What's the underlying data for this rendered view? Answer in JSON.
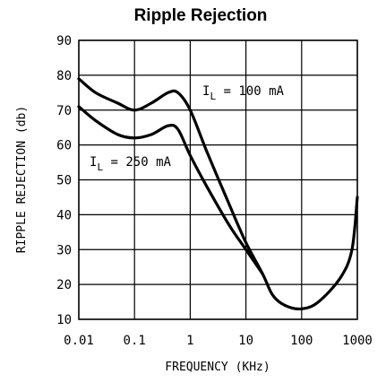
{
  "chart_data": {
    "type": "line",
    "title": "Ripple Rejection",
    "xlabel": "FREQUENCY (KHz)",
    "ylabel": "RIPPLE REJECTION (db)",
    "x_scale": "log",
    "xlim": [
      0.01,
      1000
    ],
    "ylim": [
      10,
      90
    ],
    "x_ticks": [
      0.01,
      0.1,
      1,
      10,
      100,
      1000
    ],
    "x_tick_labels": [
      "0.01",
      "0.1",
      "1",
      "10",
      "100",
      "1000"
    ],
    "y_ticks": [
      10,
      20,
      30,
      40,
      50,
      60,
      70,
      80,
      90
    ],
    "y_tick_labels": [
      "10",
      "20",
      "30",
      "40",
      "50",
      "60",
      "70",
      "80",
      "90"
    ],
    "grid": true,
    "series": [
      {
        "name": "IL = 100 mA",
        "label_main": "I",
        "label_sub": "L",
        "label_rest": " = 100 mA",
        "x": [
          0.01,
          0.02,
          0.05,
          0.1,
          0.2,
          0.4,
          0.6,
          1,
          2,
          5,
          10,
          20,
          30,
          50,
          100,
          200,
          500,
          800,
          1000
        ],
        "y": [
          79,
          75,
          72,
          70,
          72,
          75,
          75,
          70,
          58,
          43,
          32,
          23,
          17,
          14,
          13,
          15,
          22,
          30,
          45
        ]
      },
      {
        "name": "IL = 250 mA",
        "label_main": "I",
        "label_sub": "L",
        "label_rest": " = 250 mA",
        "x": [
          0.01,
          0.02,
          0.05,
          0.1,
          0.2,
          0.4,
          0.6,
          1,
          2,
          5,
          10,
          20
        ],
        "y": [
          71,
          67,
          63,
          62,
          63,
          65.5,
          64.5,
          57,
          48,
          37,
          30,
          23
        ]
      }
    ]
  }
}
